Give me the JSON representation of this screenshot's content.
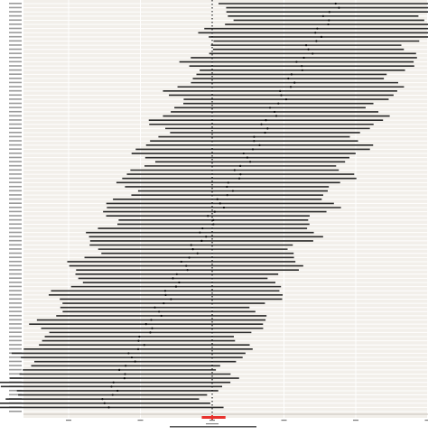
{
  "chart_data": {
    "type": "scatter",
    "subtype": "forest-plot",
    "title": "",
    "xlabel": "",
    "ylabel": "",
    "xlim": [
      -0.9,
      0.9
    ],
    "x_ticks": [
      -0.5,
      -0.25,
      0,
      0.25,
      0.5,
      0.75
    ],
    "reference_line_x": 0,
    "grid": true,
    "legend": "none",
    "n_rows": 99,
    "estimate_range": [
      -0.38,
      0.43
    ],
    "half_width_ci": 0.4,
    "summary_row": {
      "estimate": 0.0,
      "lower": -0.03,
      "upper": 0.04
    },
    "colors": {
      "panel_background": "#f2efea",
      "gridline": "#ffffff",
      "interval": "#2a2a2a",
      "point": "#000000",
      "reference_line": "#000000",
      "summary": "#e8322d",
      "label_text": "#555555"
    }
  }
}
